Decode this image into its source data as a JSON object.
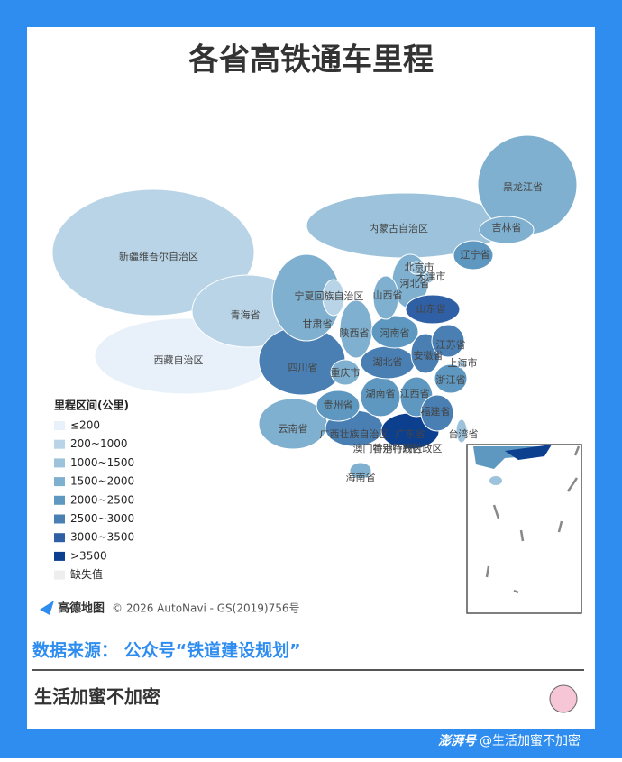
{
  "title": "各省高铁通车里程",
  "legend": {
    "title": "里程区间(公里)",
    "items": [
      {
        "label": "≤200",
        "color": "#e8f1fa"
      },
      {
        "label": "200~1000",
        "color": "#b8d4e6"
      },
      {
        "label": "1000~1500",
        "color": "#9cc3db"
      },
      {
        "label": "1500~2000",
        "color": "#7fb0cf"
      },
      {
        "label": "2000~2500",
        "color": "#5e97bf"
      },
      {
        "label": "2500~3000",
        "color": "#4a7fb3"
      },
      {
        "label": "3000~3500",
        "color": "#2f60a6"
      },
      {
        "label": ">3500",
        "color": "#0d3f8f"
      },
      {
        "label": "缺失值",
        "color": "#eeeeee"
      }
    ]
  },
  "provinces": [
    {
      "label": "新疆维吾尔自治区",
      "color": "#b8d4e6"
    },
    {
      "label": "西藏自治区",
      "color": "#e8f1fa"
    },
    {
      "label": "内蒙古自治区",
      "color": "#9cc3db"
    },
    {
      "label": "青海省",
      "color": "#b8d4e6"
    },
    {
      "label": "黑龙江省",
      "color": "#7fb0cf"
    },
    {
      "label": "四川省",
      "color": "#4a7fb3"
    },
    {
      "label": "甘肃省",
      "color": "#7fb0cf"
    },
    {
      "label": "云南省",
      "color": "#7fb0cf"
    },
    {
      "label": "吉林省",
      "color": "#7fb0cf"
    },
    {
      "label": "广西壮族自治区",
      "color": "#4a7fb3"
    },
    {
      "label": "湖南省",
      "color": "#5e97bf"
    },
    {
      "label": "陕西省",
      "color": "#7fb0cf"
    },
    {
      "label": "河北省",
      "color": "#7fb0cf"
    },
    {
      "label": "湖北省",
      "color": "#4a7fb3"
    },
    {
      "label": "广东省",
      "color": "#0d3f8f"
    },
    {
      "label": "江西省",
      "color": "#5e97bf"
    },
    {
      "label": "河南省",
      "color": "#5e97bf"
    },
    {
      "label": "山西省",
      "color": "#7fb0cf"
    },
    {
      "label": "贵州省",
      "color": "#5e97bf"
    },
    {
      "label": "辽宁省",
      "color": "#5e97bf"
    },
    {
      "label": "山东省",
      "color": "#2f60a6"
    },
    {
      "label": "福建省",
      "color": "#4a7fb3"
    },
    {
      "label": "安徽省",
      "color": "#4a7fb3"
    },
    {
      "label": "江苏省",
      "color": "#4a7fb3"
    },
    {
      "label": "浙江省",
      "color": "#5e97bf"
    },
    {
      "label": "重庆市",
      "color": "#7fb0cf"
    },
    {
      "label": "宁夏回族自治区",
      "color": "#b8d4e6"
    },
    {
      "label": "海南省",
      "color": "#7fb0cf"
    },
    {
      "label": "台湾省",
      "color": "#9cc3db"
    },
    {
      "label": "北京市",
      "color": "#9cc3db"
    },
    {
      "label": "天津市",
      "color": "#9cc3db"
    },
    {
      "label": "上海市",
      "color": "#b8d4e6"
    },
    {
      "label": "澳门特别行政区",
      "color": "#eeeeee"
    },
    {
      "label": "香港特别行政区",
      "color": "#eeeeee"
    }
  ],
  "attribution": {
    "logo": "高德地图",
    "text": "© 2026 AutoNavi - GS(2019)756号"
  },
  "source": "数据来源： 公众号“铁道建设规划”",
  "footer": "生活加蜜不加密",
  "watermark": {
    "brand": "澎湃号",
    "account": "@生活加蜜不加密"
  }
}
